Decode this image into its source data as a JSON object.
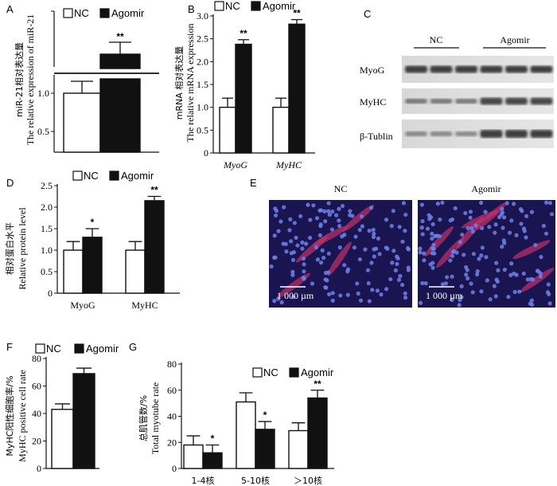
{
  "panels": {
    "A": "A",
    "B": "B",
    "C": "C",
    "D": "D",
    "E": "E",
    "F": "F",
    "G": "G"
  },
  "legend": {
    "nc": "NC",
    "agomir": "Agomir"
  },
  "colors": {
    "nc_fill": "#ffffff",
    "agomir_fill": "#111111",
    "stroke": "#111111"
  },
  "chart_data": [
    {
      "panel": "A",
      "type": "bar",
      "ylabel_cn": "miR-21相对表达量",
      "ylabel_en": "The relative expression of miR-21",
      "yticks": [
        "0.5",
        "1.0"
      ],
      "ytick_values": [
        0.5,
        1.0
      ],
      "axis_break": true,
      "series": [
        {
          "name": "NC",
          "values": [
            1.0
          ],
          "errors": [
            0.15
          ]
        },
        {
          "name": "Agomir",
          "values": [
            null
          ],
          "errors": [
            null
          ]
        }
      ],
      "significance": [
        "",
        "**"
      ]
    },
    {
      "panel": "B",
      "type": "bar",
      "categories": [
        "MyoG",
        "MyHC"
      ],
      "ylabel_cn": "mRNA 相对表达量",
      "ylabel_en": "The relative mRNA expression",
      "yticks": [
        "0",
        "0.5",
        "1.0",
        "1.5",
        "2.0",
        "2.5",
        "3.0"
      ],
      "ylim": [
        0,
        3.0
      ],
      "series": [
        {
          "name": "NC",
          "values": [
            1.0,
            1.0
          ],
          "errors": [
            0.2,
            0.2
          ]
        },
        {
          "name": "Agomir",
          "values": [
            2.38,
            2.82
          ],
          "errors": [
            0.1,
            0.1
          ]
        }
      ],
      "significance": [
        "**",
        "**"
      ]
    },
    {
      "panel": "C",
      "type": "table",
      "groups": [
        "NC",
        "Agomir"
      ],
      "rows": [
        "MyoG",
        "MyHC",
        "β-Tublin"
      ]
    },
    {
      "panel": "D",
      "type": "bar",
      "categories": [
        "MyoG",
        "MyHC"
      ],
      "ylabel_cn": "相对蛋白水平",
      "ylabel_en": "Relative protein level",
      "yticks": [
        "0",
        "0.5",
        "1.0",
        "1.5",
        "2.0",
        "2.5"
      ],
      "ylim": [
        0,
        2.5
      ],
      "series": [
        {
          "name": "NC",
          "values": [
            1.0,
            1.0
          ],
          "errors": [
            0.2,
            0.2
          ]
        },
        {
          "name": "Agomir",
          "values": [
            1.3,
            2.15
          ],
          "errors": [
            0.2,
            0.1
          ]
        }
      ],
      "significance": [
        "*",
        "**"
      ]
    },
    {
      "panel": "E",
      "groups": [
        "NC",
        "Agomir"
      ],
      "scalebar": "1 000 µm"
    },
    {
      "panel": "F",
      "type": "bar",
      "ylabel_cn": "MyHC阳性细胞率/%",
      "ylabel_en": "MyHC positive cell rate",
      "yticks": [
        "0",
        "20",
        "40",
        "60",
        "80"
      ],
      "ylim": [
        0,
        80
      ],
      "series": [
        {
          "name": "NC",
          "values": [
            43
          ],
          "errors": [
            4
          ]
        },
        {
          "name": "Agomir",
          "values": [
            69
          ],
          "errors": [
            4
          ]
        }
      ],
      "significance": [
        "",
        "**"
      ]
    },
    {
      "panel": "G",
      "type": "bar",
      "categories": [
        "1-4核",
        "5-10核",
        "＞10核"
      ],
      "ylabel_cn": "总肌管数/%",
      "ylabel_en": "Total myotube rate",
      "yticks": [
        "0",
        "20",
        "40",
        "60",
        "80"
      ],
      "ylim": [
        0,
        80
      ],
      "series": [
        {
          "name": "NC",
          "values": [
            18,
            51,
            29
          ],
          "errors": [
            7,
            7,
            6
          ]
        },
        {
          "name": "Agomir",
          "values": [
            12,
            30,
            54
          ],
          "errors": [
            6,
            6,
            6
          ]
        }
      ],
      "significance": [
        "*",
        "*",
        "**"
      ]
    }
  ]
}
